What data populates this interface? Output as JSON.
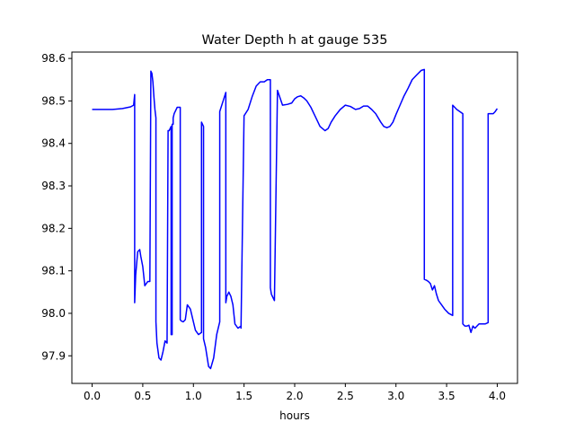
{
  "chart_data": {
    "type": "line",
    "title": "Water Depth h at gauge 535",
    "xlabel": "hours",
    "ylabel": "",
    "xlim": [
      -0.2,
      4.2
    ],
    "ylim": [
      97.835,
      98.615
    ],
    "xticks": [
      0.0,
      0.5,
      1.0,
      1.5,
      2.0,
      2.5,
      3.0,
      3.5,
      4.0
    ],
    "xtick_labels": [
      "0.0",
      "0.5",
      "1.0",
      "1.5",
      "2.0",
      "2.5",
      "3.0",
      "3.5",
      "4.0"
    ],
    "yticks": [
      97.9,
      98.0,
      98.1,
      98.2,
      98.3,
      98.4,
      98.5,
      98.6
    ],
    "ytick_labels": [
      "97.9",
      "98.0",
      "98.1",
      "98.2",
      "98.3",
      "98.4",
      "98.5",
      "98.6"
    ],
    "grid": false,
    "series": [
      {
        "color": "#0000ff",
        "x": [
          0.0,
          0.1,
          0.2,
          0.3,
          0.38,
          0.41,
          0.42,
          0.42,
          0.43,
          0.45,
          0.47,
          0.48,
          0.5,
          0.52,
          0.55,
          0.57,
          0.58,
          0.58,
          0.59,
          0.6,
          0.61,
          0.62,
          0.63,
          0.63,
          0.64,
          0.66,
          0.68,
          0.7,
          0.72,
          0.74,
          0.75,
          0.75,
          0.76,
          0.77,
          0.78,
          0.78,
          0.79,
          0.79,
          0.8,
          0.8,
          0.81,
          0.84,
          0.87,
          0.87,
          0.88,
          0.9,
          0.92,
          0.94,
          0.97,
          1.0,
          1.02,
          1.05,
          1.08,
          1.08,
          1.1,
          1.1,
          1.12,
          1.15,
          1.17,
          1.2,
          1.23,
          1.26,
          1.26,
          1.3,
          1.32,
          1.32,
          1.33,
          1.35,
          1.37,
          1.39,
          1.41,
          1.44,
          1.47,
          1.47,
          1.5,
          1.54,
          1.58,
          1.62,
          1.66,
          1.7,
          1.73,
          1.73,
          1.76,
          1.76,
          1.77,
          1.8,
          1.83,
          1.88,
          1.93,
          1.97,
          2.0,
          2.03,
          2.06,
          2.09,
          2.12,
          2.16,
          2.2,
          2.25,
          2.3,
          2.33,
          2.36,
          2.4,
          2.45,
          2.5,
          2.55,
          2.6,
          2.64,
          2.68,
          2.72,
          2.76,
          2.8,
          2.85,
          2.88,
          2.91,
          2.94,
          2.97,
          3.0,
          3.04,
          3.08,
          3.12,
          3.16,
          3.2,
          3.25,
          3.28,
          3.28,
          3.3,
          3.32,
          3.34,
          3.36,
          3.38,
          3.4,
          3.42,
          3.45,
          3.48,
          3.52,
          3.56,
          3.56,
          3.58,
          3.6,
          3.63,
          3.66,
          3.66,
          3.68,
          3.7,
          3.72,
          3.74,
          3.76,
          3.78,
          3.8,
          3.82,
          3.85,
          3.88,
          3.91,
          3.91,
          3.93,
          3.96,
          3.98,
          4.0
        ],
        "y": [
          98.48,
          98.48,
          98.48,
          98.482,
          98.486,
          98.49,
          98.515,
          98.025,
          98.09,
          98.145,
          98.15,
          98.135,
          98.11,
          98.065,
          98.075,
          98.075,
          98.57,
          98.57,
          98.565,
          98.545,
          98.51,
          98.48,
          98.46,
          97.98,
          97.93,
          97.895,
          97.89,
          97.91,
          97.935,
          97.93,
          98.43,
          98.43,
          98.43,
          98.435,
          98.44,
          97.95,
          97.95,
          98.445,
          98.445,
          98.46,
          98.47,
          98.485,
          98.485,
          97.985,
          97.982,
          97.98,
          97.985,
          98.02,
          98.01,
          97.98,
          97.96,
          97.95,
          97.955,
          98.45,
          98.44,
          97.94,
          97.92,
          97.875,
          97.87,
          97.895,
          97.95,
          97.98,
          98.475,
          98.505,
          98.52,
          98.025,
          98.04,
          98.05,
          98.04,
          98.02,
          97.975,
          97.965,
          97.97,
          97.965,
          98.465,
          98.48,
          98.51,
          98.535,
          98.545,
          98.545,
          98.55,
          98.55,
          98.55,
          98.06,
          98.045,
          98.03,
          98.525,
          98.49,
          98.492,
          98.495,
          98.505,
          98.51,
          98.512,
          98.507,
          98.5,
          98.485,
          98.465,
          98.44,
          98.43,
          98.435,
          98.45,
          98.465,
          98.48,
          98.49,
          98.487,
          98.48,
          98.482,
          98.488,
          98.488,
          98.48,
          98.47,
          98.45,
          98.44,
          98.437,
          98.44,
          98.45,
          98.468,
          98.49,
          98.512,
          98.53,
          98.55,
          98.56,
          98.572,
          98.574,
          98.08,
          98.078,
          98.075,
          98.07,
          98.055,
          98.065,
          98.045,
          98.03,
          98.02,
          98.01,
          98.0,
          97.995,
          98.49,
          98.485,
          98.48,
          98.475,
          98.47,
          97.975,
          97.97,
          97.97,
          97.972,
          97.955,
          97.97,
          97.965,
          97.97,
          97.975,
          97.975,
          97.975,
          97.978,
          98.47,
          98.47,
          98.47,
          98.475,
          98.482
        ]
      }
    ]
  }
}
